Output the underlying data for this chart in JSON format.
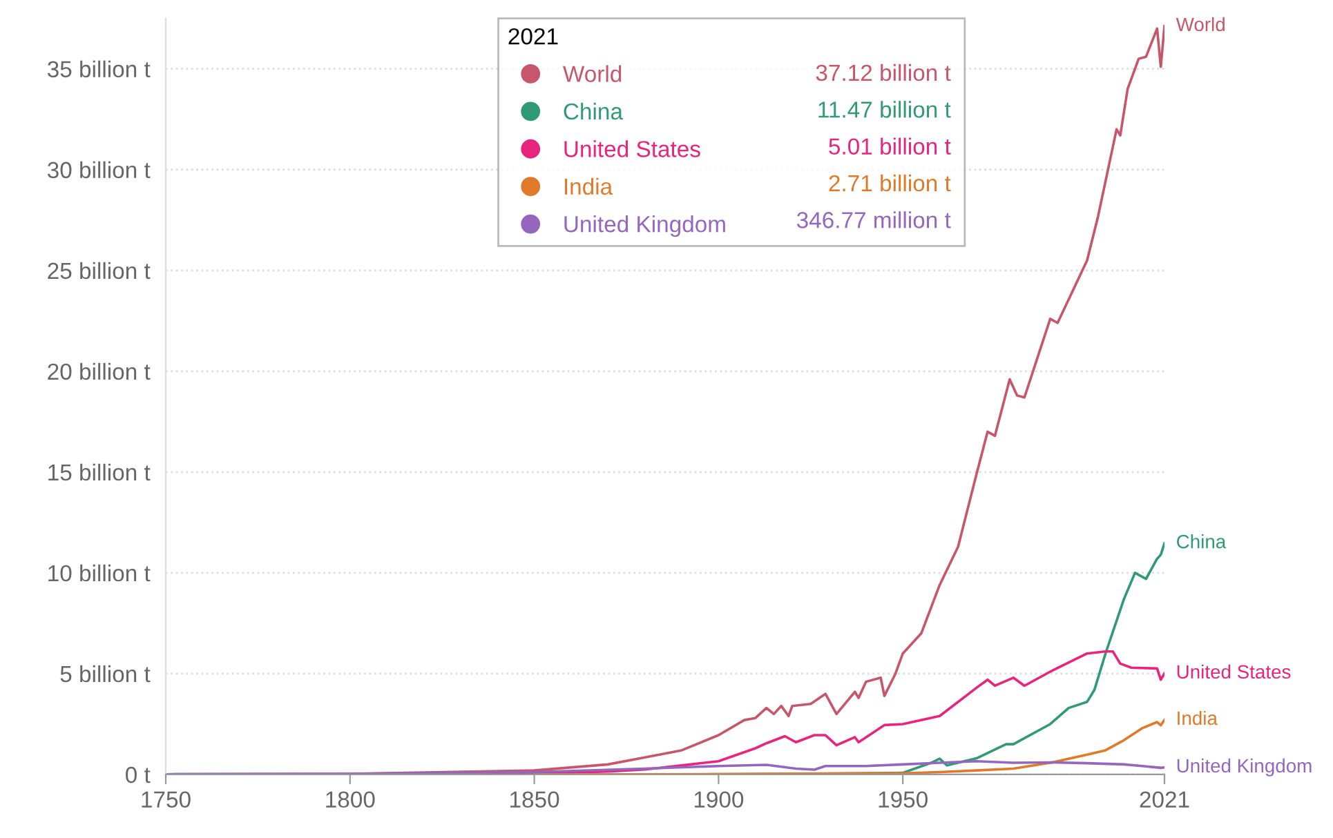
{
  "chart_data": {
    "type": "line",
    "legend_title": "2021",
    "legend": "top",
    "grid": "y",
    "marker": "none",
    "line_style": "solid",
    "xlim": [
      1750,
      2021
    ],
    "xticks": [
      1750,
      1800,
      1850,
      1900,
      1950,
      2021
    ],
    "ylim": [
      0,
      37.5
    ],
    "yticks": [
      {
        "value": 0,
        "label": "0 t"
      },
      {
        "value": 5,
        "label": "5 billion t"
      },
      {
        "value": 10,
        "label": "10 billion t"
      },
      {
        "value": 15,
        "label": "15 billion t"
      },
      {
        "value": 20,
        "label": "20 billion t"
      },
      {
        "value": 25,
        "label": "25 billion t"
      },
      {
        "value": 30,
        "label": "30 billion t"
      },
      {
        "value": 35,
        "label": "35 billion t"
      }
    ],
    "annotations": [
      "37.12 billion t",
      "11.47 billion t",
      "5.01 billion t",
      "2.71 billion t",
      "346.77 million t"
    ],
    "series": [
      {
        "name": "World",
        "color": "#c8566a",
        "x": [
          1750,
          1800,
          1850,
          1870,
          1880,
          1890,
          1900,
          1907,
          1910,
          1913,
          1915,
          1917,
          1919,
          1920,
          1925,
          1929,
          1932,
          1937,
          1938,
          1940,
          1944,
          1945,
          1948,
          1950,
          1955,
          1960,
          1965,
          1970,
          1973,
          1975,
          1979,
          1981,
          1983,
          1990,
          1992,
          2000,
          2003,
          2008,
          2009,
          2011,
          2014,
          2016,
          2019,
          2020,
          2021
        ],
        "values": [
          0.01,
          0.03,
          0.2,
          0.5,
          0.85,
          1.2,
          1.95,
          2.7,
          2.8,
          3.3,
          3.0,
          3.4,
          2.9,
          3.4,
          3.5,
          4.0,
          3.0,
          4.1,
          3.8,
          4.6,
          4.8,
          3.9,
          5.0,
          6.0,
          7.0,
          9.4,
          11.3,
          14.9,
          17.0,
          16.8,
          19.6,
          18.8,
          18.7,
          22.6,
          22.4,
          25.5,
          27.7,
          32.0,
          31.7,
          34.0,
          35.5,
          35.6,
          37.0,
          35.1,
          37.12
        ]
      },
      {
        "name": "China",
        "color": "#2f9a73",
        "x": [
          1900,
          1950,
          1958,
          1960,
          1962,
          1970,
          1978,
          1980,
          1990,
          1995,
          2000,
          2002,
          2005,
          2010,
          2013,
          2016,
          2019,
          2020,
          2021
        ],
        "values": [
          0.0,
          0.08,
          0.6,
          0.78,
          0.45,
          0.8,
          1.5,
          1.5,
          2.5,
          3.3,
          3.6,
          4.2,
          6.0,
          8.7,
          10.0,
          9.7,
          10.7,
          10.9,
          11.47
        ]
      },
      {
        "name": "United States",
        "color": "#e8247f",
        "x": [
          1800,
          1850,
          1870,
          1880,
          1890,
          1900,
          1910,
          1913,
          1918,
          1921,
          1926,
          1929,
          1932,
          1937,
          1938,
          1945,
          1950,
          1960,
          1970,
          1973,
          1975,
          1980,
          1983,
          1990,
          2000,
          2005,
          2007,
          2009,
          2012,
          2019,
          2020,
          2021
        ],
        "values": [
          0.0,
          0.05,
          0.15,
          0.25,
          0.45,
          0.66,
          1.3,
          1.55,
          1.9,
          1.6,
          1.95,
          1.95,
          1.45,
          1.85,
          1.6,
          2.45,
          2.5,
          2.9,
          4.3,
          4.7,
          4.4,
          4.8,
          4.4,
          5.1,
          6.0,
          6.1,
          6.1,
          5.5,
          5.3,
          5.26,
          4.7,
          5.01
        ]
      },
      {
        "name": "India",
        "color": "#e07a2a",
        "x": [
          1850,
          1900,
          1950,
          1960,
          1970,
          1980,
          1990,
          2000,
          2005,
          2010,
          2015,
          2019,
          2020,
          2021
        ],
        "values": [
          0.0,
          0.02,
          0.06,
          0.12,
          0.2,
          0.29,
          0.58,
          0.98,
          1.2,
          1.7,
          2.3,
          2.6,
          2.44,
          2.71
        ]
      },
      {
        "name": "United Kingdom",
        "color": "#9466bd",
        "x": [
          1750,
          1800,
          1850,
          1880,
          1900,
          1913,
          1921,
          1926,
          1929,
          1940,
          1950,
          1960,
          1970,
          1980,
          1990,
          2000,
          2010,
          2015,
          2020,
          2021
        ],
        "values": [
          0.01,
          0.03,
          0.12,
          0.29,
          0.42,
          0.48,
          0.29,
          0.24,
          0.42,
          0.42,
          0.5,
          0.58,
          0.66,
          0.58,
          0.6,
          0.56,
          0.5,
          0.42,
          0.33,
          0.35
        ]
      }
    ]
  }
}
